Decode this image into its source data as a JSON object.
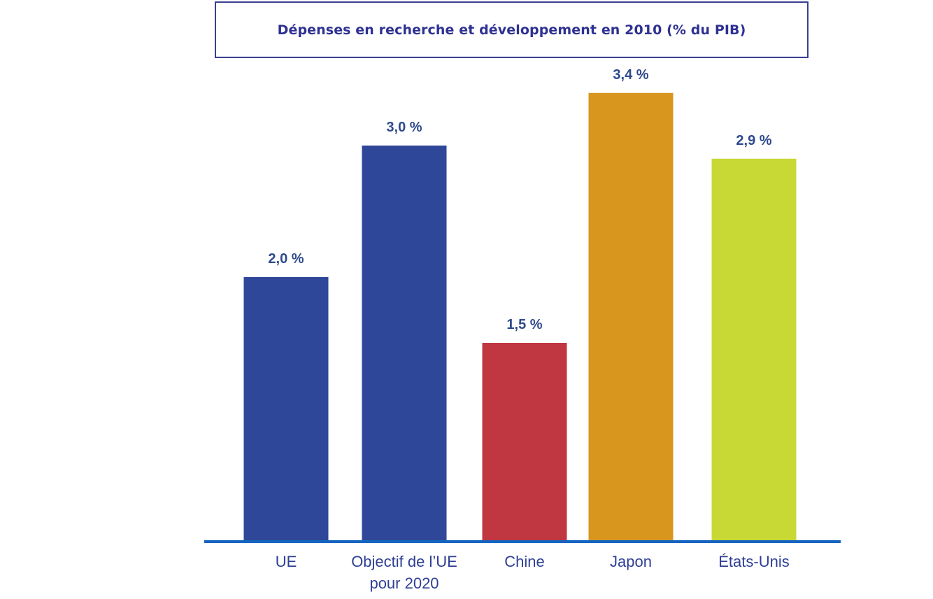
{
  "chart_data": {
    "type": "bar",
    "title": "Dépenses en recherche et développement en 2010 (% du PIB)",
    "xlabel": "",
    "ylabel": "",
    "ylim": [
      0,
      3.4
    ],
    "categories": [
      "UE",
      "Objectif de l’UE pour 2020",
      "Chine",
      "Japon",
      "États-Unis"
    ],
    "category_lines": [
      [
        "UE"
      ],
      [
        "Objectif de l’UE",
        "pour 2020"
      ],
      [
        "Chine"
      ],
      [
        "Japon"
      ],
      [
        "États-Unis"
      ]
    ],
    "values": [
      2.0,
      3.0,
      1.5,
      3.4,
      2.9
    ],
    "value_labels": [
      "2,0 %",
      "3,0 %",
      "1,5 %",
      "3,4 %",
      "2,9 %"
    ],
    "colors": [
      "#2e4799",
      "#2e4799",
      "#c03641",
      "#d8961f",
      "#c8d835"
    ],
    "axis_color": "#1565c0",
    "grid": false,
    "legend": "none"
  }
}
